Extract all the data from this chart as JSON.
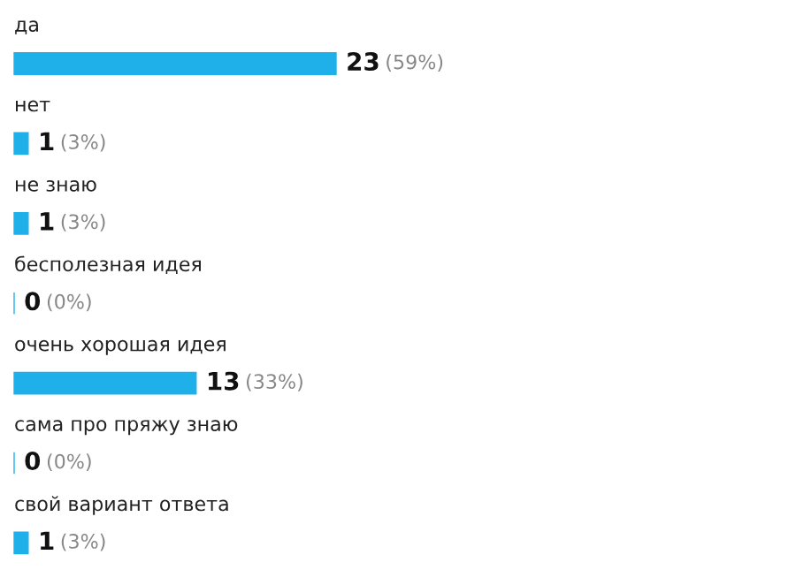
{
  "chart_data": {
    "type": "bar",
    "orientation": "horizontal",
    "categories": [
      "да",
      "нет",
      "не знаю",
      "бесполезная идея",
      "очень хорошая идея",
      "сама про пряжу знаю",
      "свой вариант ответа"
    ],
    "values": [
      23,
      1,
      1,
      0,
      13,
      0,
      1
    ],
    "color": "#1fb0ea",
    "value_labels": [
      "23 (59%)",
      "1 (3%)",
      "1 (3%)",
      "0 (0%)",
      "13 (33%)",
      "0 (0%)",
      "1 (3%)"
    ]
  }
}
